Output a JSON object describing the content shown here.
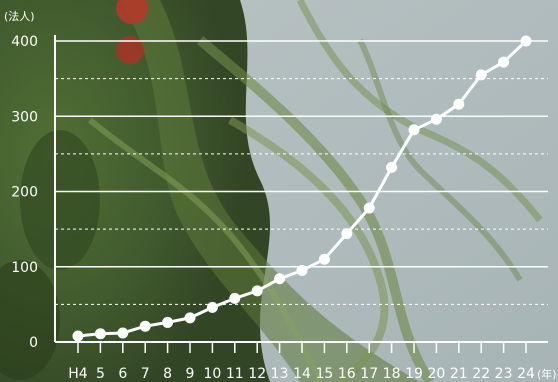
{
  "chart_data": {
    "type": "line",
    "title": "",
    "y_unit_label": "(法人)",
    "x_unit_label": "(年)",
    "categories": [
      "H4",
      "5",
      "6",
      "7",
      "8",
      "9",
      "10",
      "11",
      "12",
      "13",
      "14",
      "15",
      "16",
      "17",
      "18",
      "19",
      "20",
      "21",
      "22",
      "23",
      "24"
    ],
    "series": [
      {
        "values": [
          8,
          11,
          12,
          21,
          26,
          32,
          46,
          58,
          68,
          84,
          95,
          110,
          144,
          178,
          232,
          282,
          296,
          316,
          355,
          372,
          400
        ]
      }
    ],
    "ylim": [
      0,
      400
    ],
    "yticks": [
      0,
      100,
      200,
      300,
      400
    ],
    "y_tick_labels": [
      "0",
      "100",
      "200",
      "300",
      "400"
    ],
    "grid": {
      "major": true,
      "minor_dashed": true
    },
    "colors": {
      "line": "#ffffff",
      "marker": "#ffffff",
      "grid": "#ffffff"
    }
  }
}
